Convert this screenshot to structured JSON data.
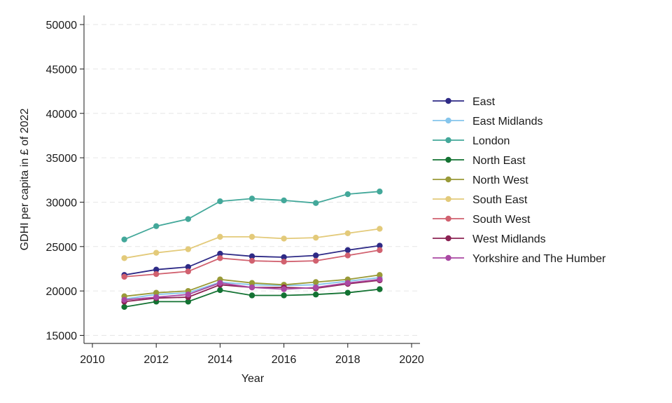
{
  "chart_data": {
    "type": "line",
    "title": "",
    "xlabel": "Year",
    "ylabel": "GDHI per capita in £ of 2022",
    "xlim": [
      2010,
      2020
    ],
    "ylim": [
      15000,
      50000
    ],
    "x_ticks": [
      "2010",
      "2012",
      "2014",
      "2016",
      "2018",
      "2020"
    ],
    "y_ticks": [
      "15000",
      "20000",
      "25000",
      "30000",
      "35000",
      "40000",
      "45000",
      "50000"
    ],
    "grid": "horizontal dashed",
    "legend_position": "right",
    "x": [
      2011,
      2012,
      2013,
      2014,
      2015,
      2016,
      2017,
      2018,
      2019
    ],
    "series": [
      {
        "name": "East",
        "color": "#2e2a86",
        "values": [
          21800,
          22400,
          22700,
          24200,
          23900,
          23800,
          24000,
          24600,
          25100
        ]
      },
      {
        "name": "East Midlands",
        "color": "#85c5ec",
        "values": [
          19100,
          19600,
          19800,
          21000,
          20700,
          20600,
          20700,
          21100,
          21500
        ]
      },
      {
        "name": "London",
        "color": "#43a89a",
        "values": [
          25800,
          27300,
          28100,
          30100,
          30400,
          30200,
          29900,
          30900,
          31200
        ]
      },
      {
        "name": "North East",
        "color": "#137232",
        "values": [
          18200,
          18800,
          18800,
          20100,
          19500,
          19500,
          19600,
          19800,
          20200
        ]
      },
      {
        "name": "North West",
        "color": "#999a37",
        "values": [
          19400,
          19800,
          20000,
          21300,
          20900,
          20700,
          21000,
          21300,
          21800
        ]
      },
      {
        "name": "South East",
        "color": "#e3ca7a",
        "values": [
          23700,
          24300,
          24700,
          26100,
          26100,
          25900,
          26000,
          26500,
          27000
        ]
      },
      {
        "name": "South West",
        "color": "#d1616f",
        "values": [
          21600,
          21900,
          22200,
          23700,
          23400,
          23300,
          23400,
          24000,
          24600
        ]
      },
      {
        "name": "West Midlands",
        "color": "#8b2253",
        "values": [
          18800,
          19200,
          19300,
          20700,
          20400,
          20400,
          20300,
          20800,
          21200
        ]
      },
      {
        "name": "Yorkshire and The Humber",
        "color": "#aa48a3",
        "values": [
          19000,
          19300,
          19600,
          20900,
          20400,
          20200,
          20400,
          20900,
          21300
        ]
      }
    ]
  }
}
